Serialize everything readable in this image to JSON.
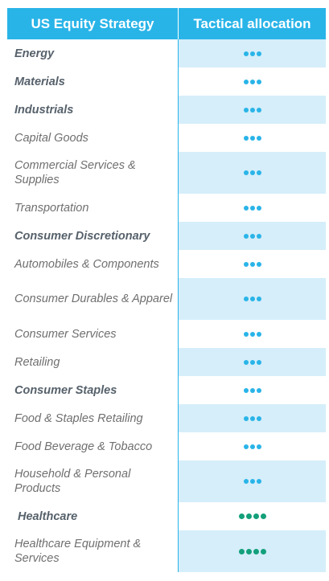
{
  "header": {
    "col1": "US Equity Strategy",
    "col2": "Tactical allocation"
  },
  "colors": {
    "accent": "#29b4e8",
    "shade": "#d5eefa",
    "green_dot": "#13a07a"
  },
  "rows": [
    {
      "label": "Energy",
      "bold": true,
      "dots": 3,
      "dot_color": "blue"
    },
    {
      "label": "Materials",
      "bold": true,
      "dots": 3,
      "dot_color": "blue"
    },
    {
      "label": "Industrials",
      "bold": true,
      "dots": 3,
      "dot_color": "blue"
    },
    {
      "label": "Capital Goods",
      "bold": false,
      "dots": 3,
      "dot_color": "blue"
    },
    {
      "label": "Commercial Services & Supplies",
      "bold": false,
      "dots": 3,
      "dot_color": "blue"
    },
    {
      "label": "Transportation",
      "bold": false,
      "dots": 3,
      "dot_color": "blue"
    },
    {
      "label": "Consumer Discretionary",
      "bold": true,
      "dots": 3,
      "dot_color": "blue"
    },
    {
      "label": "Automobiles & Components",
      "bold": false,
      "dots": 3,
      "dot_color": "blue"
    },
    {
      "label": "Consumer Durables & Apparel",
      "bold": false,
      "dots": 3,
      "dot_color": "blue"
    },
    {
      "label": "Consumer Services",
      "bold": false,
      "dots": 3,
      "dot_color": "blue"
    },
    {
      "label": "Retailing",
      "bold": false,
      "dots": 3,
      "dot_color": "blue"
    },
    {
      "label": "Consumer Staples",
      "bold": true,
      "dots": 3,
      "dot_color": "blue"
    },
    {
      "label": "Food & Staples Retailing",
      "bold": false,
      "dots": 3,
      "dot_color": "blue"
    },
    {
      "label": "Food Beverage & Tobacco",
      "bold": false,
      "dots": 3,
      "dot_color": "blue"
    },
    {
      "label": "Household & Personal Products",
      "bold": false,
      "dots": 3,
      "dot_color": "blue"
    },
    {
      "label": "Healthcare",
      "bold": true,
      "dots": 4,
      "dot_color": "green"
    },
    {
      "label": "Healthcare Equipment & Services",
      "bold": false,
      "dots": 4,
      "dot_color": "green"
    }
  ]
}
